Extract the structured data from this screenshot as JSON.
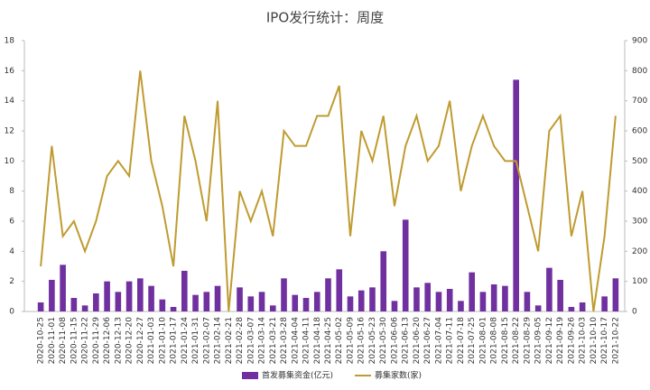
{
  "chart_data": {
    "type": "bar_line",
    "title": "IPO发行统计：周度",
    "categories": [
      "2020-10-25",
      "2020-11-01",
      "2020-11-08",
      "2020-11-15",
      "2020-11-22",
      "2020-11-29",
      "2020-12-06",
      "2020-12-13",
      "2020-12-20",
      "2020-12-27",
      "2021-01-03",
      "2021-01-10",
      "2021-01-17",
      "2021-01-24",
      "2021-01-31",
      "2021-02-07",
      "2021-02-14",
      "2021-02-21",
      "2021-02-28",
      "2021-03-07",
      "2021-03-14",
      "2021-03-21",
      "2021-03-28",
      "2021-04-04",
      "2021-04-11",
      "2021-04-18",
      "2021-04-25",
      "2021-05-02",
      "2021-05-09",
      "2021-05-16",
      "2021-05-23",
      "2021-05-30",
      "2021-06-06",
      "2021-06-13",
      "2021-06-20",
      "2021-06-27",
      "2021-07-04",
      "2021-07-11",
      "2021-07-18",
      "2021-07-25",
      "2021-08-01",
      "2021-08-08",
      "2021-08-15",
      "2021-08-22",
      "2021-08-29",
      "2021-09-05",
      "2021-09-12",
      "2021-09-19",
      "2021-09-26",
      "2021-10-03",
      "2021-10-10",
      "2021-10-17",
      "2021-10-22"
    ],
    "series": [
      {
        "name": "首发募集资金(亿元)",
        "type": "bar",
        "axis": "y",
        "color": "#7030a0",
        "values": [
          0.6,
          2.1,
          3.1,
          0.9,
          0.4,
          1.2,
          2.0,
          1.3,
          2.0,
          2.2,
          1.7,
          0.8,
          0.3,
          2.7,
          1.1,
          1.3,
          1.7,
          0,
          1.6,
          1.0,
          1.3,
          0.4,
          2.2,
          1.1,
          0.9,
          1.3,
          2.2,
          2.8,
          1.0,
          1.4,
          1.6,
          4.0,
          0.7,
          6.1,
          1.6,
          1.9,
          1.3,
          1.5,
          0.7,
          2.6,
          1.3,
          1.8,
          1.7,
          15.4,
          1.3,
          0.4,
          2.9,
          2.1,
          0.3,
          0.6,
          0,
          1.0,
          2.2
        ]
      },
      {
        "name": "募集家数(家)",
        "type": "line",
        "axis": "y2",
        "color": "#bf9b30",
        "values": [
          150,
          550,
          250,
          300,
          200,
          300,
          450,
          500,
          450,
          800,
          500,
          350,
          150,
          650,
          500,
          300,
          700,
          0,
          400,
          300,
          400,
          250,
          600,
          550,
          550,
          650,
          650,
          750,
          250,
          600,
          500,
          650,
          350,
          550,
          650,
          500,
          550,
          700,
          400,
          550,
          650,
          550,
          500,
          500,
          350,
          200,
          600,
          650,
          250,
          400,
          0,
          250,
          650
        ]
      }
    ],
    "ylim": [
      0,
      18
    ],
    "yticks": [
      0,
      2,
      4,
      6,
      8,
      10,
      12,
      14,
      16,
      18
    ],
    "y2lim": [
      0,
      900
    ],
    "y2ticks": [
      0,
      100,
      200,
      300,
      400,
      500,
      600,
      700,
      800,
      900
    ],
    "legend": "bottom",
    "grid": false
  }
}
